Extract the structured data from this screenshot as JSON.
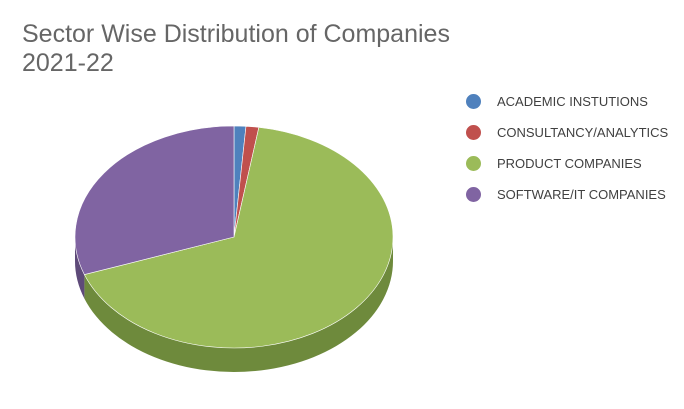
{
  "chart_data": {
    "type": "pie",
    "title_lines": [
      "Sector Wise Distribution of Companies",
      "2021-22"
    ],
    "categories": [
      "ACADEMIC INSTUTIONS",
      "CONSULTANCY/ANALYTICS",
      "PRODUCT COMPANIES",
      "SOFTWARE/IT COMPANIES"
    ],
    "values": [
      1.2,
      1.3,
      67.0,
      30.5
    ],
    "colors": [
      "#4F81BD",
      "#C0504D",
      "#9BBB59",
      "#8064A2"
    ],
    "side_colors": [
      "#3C6390",
      "#933D3A",
      "#6E8A3C",
      "#5E4A79"
    ],
    "legend_position": "right",
    "style": "3d-pie"
  }
}
